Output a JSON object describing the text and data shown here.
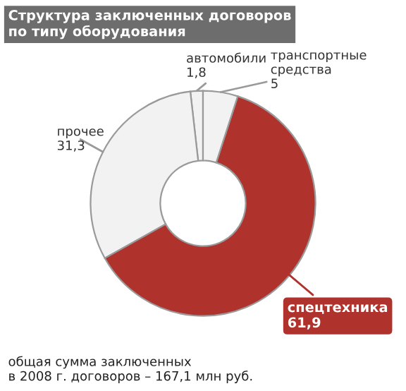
{
  "chart_data": {
    "type": "donut",
    "title": "Структура заключенных договоров\nпо типу оборудования",
    "categories": [
      "автомобили",
      "прочее",
      "спецтехника",
      "транспортные\nсредства"
    ],
    "values": [
      1.8,
      31.3,
      61.9,
      5
    ],
    "value_labels": [
      "1,8",
      "31,3",
      "61,9",
      "5"
    ],
    "colors": [
      "#f2f2f2",
      "#f2f2f2",
      "#b0322c",
      "#f2f2f2"
    ],
    "annotations": [
      "общая сумма заключенных\nв 2008 г. договоров – 167,1 млн руб."
    ]
  }
}
